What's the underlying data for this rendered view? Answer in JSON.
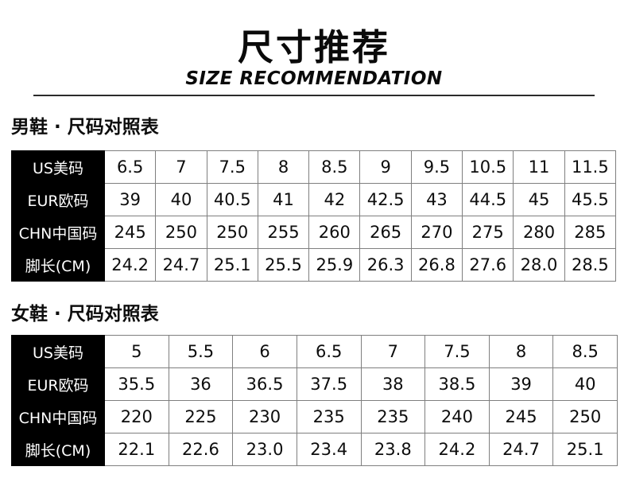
{
  "header": {
    "title": "尺寸推荐",
    "subtitle": "SIZE RECOMMENDATION"
  },
  "men_section": {
    "heading": "男鞋 · 尺码对照表",
    "table": {
      "row_headers": [
        "US美码",
        "EUR欧码",
        "CHN中国码",
        "脚长(CM)"
      ],
      "rows": [
        [
          "6.5",
          "7",
          "7.5",
          "8",
          "8.5",
          "9",
          "9.5",
          "10.5",
          "11",
          "11.5"
        ],
        [
          "39",
          "40",
          "40.5",
          "41",
          "42",
          "42.5",
          "43",
          "44.5",
          "45",
          "45.5"
        ],
        [
          "245",
          "250",
          "250",
          "255",
          "260",
          "265",
          "270",
          "275",
          "280",
          "285"
        ],
        [
          "24.2",
          "24.7",
          "25.1",
          "25.5",
          "25.9",
          "26.3",
          "26.8",
          "27.6",
          "28.0",
          "28.5"
        ]
      ]
    }
  },
  "women_section": {
    "heading": "女鞋 · 尺码对照表",
    "table": {
      "row_headers": [
        "US美码",
        "EUR欧码",
        "CHN中国码",
        "脚长(CM)"
      ],
      "rows": [
        [
          "5",
          "5.5",
          "6",
          "6.5",
          "7",
          "7.5",
          "8",
          "8.5"
        ],
        [
          "35.5",
          "36",
          "36.5",
          "37.5",
          "38",
          "38.5",
          "39",
          "40"
        ],
        [
          "220",
          "225",
          "230",
          "235",
          "235",
          "240",
          "245",
          "250"
        ],
        [
          "22.1",
          "22.6",
          "23.0",
          "23.4",
          "23.8",
          "24.2",
          "24.7",
          "25.1"
        ]
      ]
    }
  },
  "colors": {
    "page_background": "#ffffff",
    "header_cell_background": "#000000",
    "header_cell_text": "#ffffff",
    "cell_border": "#7f7f7f",
    "title_text": "#0a0a0a"
  }
}
